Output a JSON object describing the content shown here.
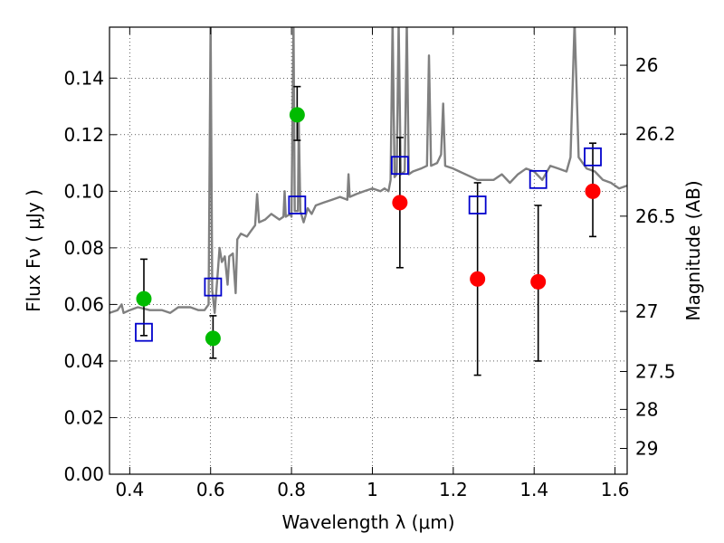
{
  "chart_data": {
    "type": "scatter",
    "title": "",
    "xlabel": "Wavelength  λ (μm)",
    "ylabel": "Flux  Fν  ( μJy )",
    "ylabel_right": "Magnitude (AB)",
    "xlim": [
      0.35,
      1.63
    ],
    "ylim": [
      0.0,
      0.158
    ],
    "grid": true,
    "x_ticks": [
      0.4,
      0.6,
      0.8,
      1.0,
      1.2,
      1.4,
      1.6
    ],
    "x_tick_labels": [
      "0.4",
      "0.6",
      "0.8",
      "1",
      "1.2",
      "1.4",
      "1.6"
    ],
    "y_ticks": [
      0.0,
      0.02,
      0.04,
      0.06,
      0.08,
      0.1,
      0.12,
      0.14
    ],
    "y_tick_labels": [
      "0.00",
      "0.02",
      "0.04",
      "0.06",
      "0.08",
      "0.10",
      "0.12",
      "0.14"
    ],
    "mag_ticks": [
      26,
      26.2,
      26.5,
      27,
      27.5,
      28,
      29
    ],
    "mag_tick_labels": [
      "26",
      "26.2",
      "26.5",
      "27",
      "27.5",
      "28",
      "29"
    ],
    "colors": {
      "model": "#808080",
      "green": "#00bb00",
      "red": "#ff0000",
      "model_band": "#0000cc",
      "errorbar": "#000000"
    },
    "series": [
      {
        "kind": "line",
        "points": [
          [
            0.35,
            0.057
          ],
          [
            0.37,
            0.058
          ],
          [
            0.38,
            0.06
          ],
          [
            0.385,
            0.057
          ],
          [
            0.4,
            0.058
          ],
          [
            0.42,
            0.059
          ],
          [
            0.45,
            0.058
          ],
          [
            0.48,
            0.058
          ],
          [
            0.5,
            0.057
          ],
          [
            0.52,
            0.059
          ],
          [
            0.55,
            0.059
          ],
          [
            0.57,
            0.058
          ],
          [
            0.585,
            0.058
          ],
          [
            0.595,
            0.06
          ],
          [
            0.6,
            0.16
          ],
          [
            0.604,
            0.065
          ],
          [
            0.61,
            0.057
          ],
          [
            0.618,
            0.072
          ],
          [
            0.622,
            0.08
          ],
          [
            0.628,
            0.075
          ],
          [
            0.635,
            0.077
          ],
          [
            0.642,
            0.067
          ],
          [
            0.646,
            0.077
          ],
          [
            0.655,
            0.078
          ],
          [
            0.662,
            0.064
          ],
          [
            0.666,
            0.083
          ],
          [
            0.675,
            0.085
          ],
          [
            0.69,
            0.084
          ],
          [
            0.7,
            0.086
          ],
          [
            0.71,
            0.088
          ],
          [
            0.715,
            0.099
          ],
          [
            0.72,
            0.089
          ],
          [
            0.735,
            0.09
          ],
          [
            0.75,
            0.092
          ],
          [
            0.77,
            0.09
          ],
          [
            0.78,
            0.091
          ],
          [
            0.783,
            0.1
          ],
          [
            0.786,
            0.091
          ],
          [
            0.797,
            0.092
          ],
          [
            0.8,
            0.091
          ],
          [
            0.805,
            0.16
          ],
          [
            0.808,
            0.093
          ],
          [
            0.816,
            0.093
          ],
          [
            0.818,
            0.125
          ],
          [
            0.822,
            0.093
          ],
          [
            0.83,
            0.089
          ],
          [
            0.84,
            0.094
          ],
          [
            0.85,
            0.092
          ],
          [
            0.86,
            0.095
          ],
          [
            0.88,
            0.096
          ],
          [
            0.9,
            0.097
          ],
          [
            0.92,
            0.098
          ],
          [
            0.938,
            0.097
          ],
          [
            0.941,
            0.106
          ],
          [
            0.944,
            0.098
          ],
          [
            0.96,
            0.099
          ],
          [
            0.98,
            0.1
          ],
          [
            1.0,
            0.101
          ],
          [
            1.02,
            0.1
          ],
          [
            1.03,
            0.101
          ],
          [
            1.04,
            0.1
          ],
          [
            1.045,
            0.104
          ],
          [
            1.05,
            0.16
          ],
          [
            1.055,
            0.105
          ],
          [
            1.06,
            0.106
          ],
          [
            1.065,
            0.16
          ],
          [
            1.07,
            0.106
          ],
          [
            1.08,
            0.107
          ],
          [
            1.085,
            0.16
          ],
          [
            1.09,
            0.106
          ],
          [
            1.1,
            0.107
          ],
          [
            1.12,
            0.108
          ],
          [
            1.135,
            0.109
          ],
          [
            1.14,
            0.148
          ],
          [
            1.145,
            0.109
          ],
          [
            1.16,
            0.11
          ],
          [
            1.17,
            0.113
          ],
          [
            1.175,
            0.131
          ],
          [
            1.18,
            0.109
          ],
          [
            1.2,
            0.108
          ],
          [
            1.23,
            0.106
          ],
          [
            1.26,
            0.104
          ],
          [
            1.3,
            0.104
          ],
          [
            1.32,
            0.106
          ],
          [
            1.34,
            0.103
          ],
          [
            1.36,
            0.106
          ],
          [
            1.38,
            0.108
          ],
          [
            1.4,
            0.107
          ],
          [
            1.42,
            0.104
          ],
          [
            1.44,
            0.109
          ],
          [
            1.46,
            0.108
          ],
          [
            1.48,
            0.107
          ],
          [
            1.49,
            0.112
          ],
          [
            1.5,
            0.16
          ],
          [
            1.51,
            0.112
          ],
          [
            1.53,
            0.108
          ],
          [
            1.55,
            0.107
          ],
          [
            1.57,
            0.104
          ],
          [
            1.59,
            0.103
          ],
          [
            1.61,
            0.101
          ],
          [
            1.63,
            0.102
          ]
        ]
      },
      {
        "kind": "points",
        "marker": "circle",
        "color_key": "green",
        "points": [
          {
            "x": 0.435,
            "y": 0.062,
            "yerr_low": 0.049,
            "yerr_high": 0.076
          },
          {
            "x": 0.606,
            "y": 0.048,
            "yerr_low": 0.041,
            "yerr_high": 0.056
          },
          {
            "x": 0.814,
            "y": 0.127,
            "yerr_low": 0.118,
            "yerr_high": 0.137
          }
        ]
      },
      {
        "kind": "points",
        "marker": "circle",
        "color_key": "red",
        "points": [
          {
            "x": 1.068,
            "y": 0.096,
            "yerr_low": 0.073,
            "yerr_high": 0.119
          },
          {
            "x": 1.26,
            "y": 0.069,
            "yerr_low": 0.035,
            "yerr_high": 0.103
          },
          {
            "x": 1.41,
            "y": 0.068,
            "yerr_low": 0.04,
            "yerr_high": 0.095
          },
          {
            "x": 1.545,
            "y": 0.1,
            "yerr_low": 0.084,
            "yerr_high": 0.117
          }
        ]
      },
      {
        "kind": "points",
        "marker": "square",
        "color_key": "model_band",
        "points": [
          {
            "x": 0.435,
            "y": 0.05
          },
          {
            "x": 0.606,
            "y": 0.066
          },
          {
            "x": 0.814,
            "y": 0.095
          },
          {
            "x": 1.068,
            "y": 0.109
          },
          {
            "x": 1.26,
            "y": 0.095
          },
          {
            "x": 1.41,
            "y": 0.104
          },
          {
            "x": 1.545,
            "y": 0.112
          }
        ]
      }
    ]
  }
}
